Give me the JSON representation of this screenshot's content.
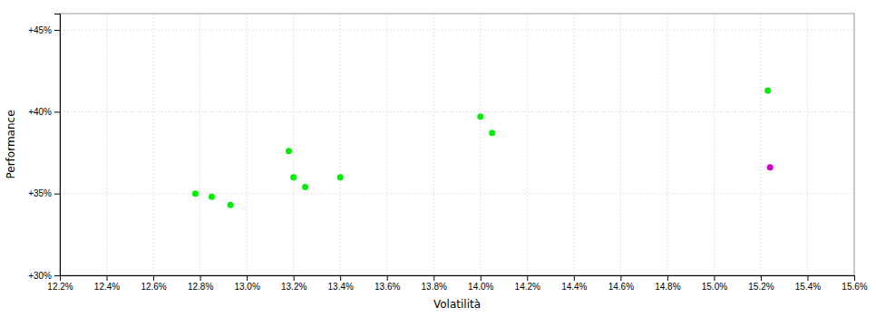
{
  "chart_data": {
    "type": "scatter",
    "xlabel": "Volatilità",
    "ylabel": "Performance",
    "xlim": [
      0.122,
      0.156
    ],
    "ylim": [
      0.3,
      0.46
    ],
    "xticks": [
      {
        "value": 0.122,
        "label": "12.2%"
      },
      {
        "value": 0.124,
        "label": "12.4%"
      },
      {
        "value": 0.126,
        "label": "12.6%"
      },
      {
        "value": 0.128,
        "label": "12.8%"
      },
      {
        "value": 0.13,
        "label": "13.0%"
      },
      {
        "value": 0.132,
        "label": "13.2%"
      },
      {
        "value": 0.134,
        "label": "13.4%"
      },
      {
        "value": 0.136,
        "label": "13.6%"
      },
      {
        "value": 0.138,
        "label": "13.8%"
      },
      {
        "value": 0.14,
        "label": "14.0%"
      },
      {
        "value": 0.142,
        "label": "14.2%"
      },
      {
        "value": 0.144,
        "label": "14.4%"
      },
      {
        "value": 0.146,
        "label": "14.6%"
      },
      {
        "value": 0.148,
        "label": "14.8%"
      },
      {
        "value": 0.15,
        "label": "15.0%"
      },
      {
        "value": 0.152,
        "label": "15.2%"
      },
      {
        "value": 0.154,
        "label": "15.4%"
      },
      {
        "value": 0.156,
        "label": "15.6%"
      }
    ],
    "yticks": [
      {
        "value": 0.3,
        "label": "+30%"
      },
      {
        "value": 0.35,
        "label": "+35%"
      },
      {
        "value": 0.4,
        "label": "+40%"
      },
      {
        "value": 0.45,
        "label": "+45%"
      }
    ],
    "grid": true,
    "series": [
      {
        "color": "#00ee00",
        "x": [
          0.1278,
          0.1285,
          0.1293,
          0.1318,
          0.132,
          0.1325,
          0.134,
          0.14,
          0.1405,
          0.1523
        ],
        "values": [
          0.35,
          0.348,
          0.343,
          0.376,
          0.36,
          0.354,
          0.36,
          0.397,
          0.387,
          0.413
        ]
      },
      {
        "color": "#cc00cc",
        "x": [
          0.1524
        ],
        "values": [
          0.366
        ]
      }
    ]
  }
}
